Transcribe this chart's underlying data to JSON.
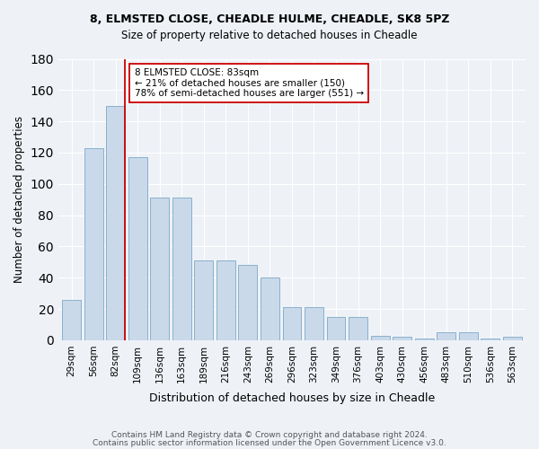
{
  "title1": "8, ELMSTED CLOSE, CHEADLE HULME, CHEADLE, SK8 5PZ",
  "title2": "Size of property relative to detached houses in Cheadle",
  "xlabel": "Distribution of detached houses by size in Cheadle",
  "ylabel": "Number of detached properties",
  "bar_values": [
    26,
    123,
    150,
    117,
    91,
    91,
    51,
    51,
    48,
    40,
    21,
    21,
    15,
    15,
    3,
    2,
    1,
    5,
    5,
    1,
    2
  ],
  "categories": [
    "29sqm",
    "56sqm",
    "82sqm",
    "109sqm",
    "136sqm",
    "163sqm",
    "189sqm",
    "216sqm",
    "243sqm",
    "269sqm",
    "296sqm",
    "323sqm",
    "349sqm",
    "376sqm",
    "403sqm",
    "430sqm",
    "456sqm",
    "483sqm",
    "510sqm",
    "536sqm",
    "563sqm"
  ],
  "bar_color": "#c9d9ea",
  "bar_edge_color": "#8ab0cc",
  "property_bar_index": 2,
  "annotation_text": "8 ELMSTED CLOSE: 83sqm\n← 21% of detached houses are smaller (150)\n78% of semi-detached houses are larger (551) →",
  "annotation_box_color": "#ffffff",
  "annotation_box_edge": "#cc0000",
  "vline_color": "#cc0000",
  "ylim": [
    0,
    180
  ],
  "yticks": [
    0,
    20,
    40,
    60,
    80,
    100,
    120,
    140,
    160,
    180
  ],
  "footer1": "Contains HM Land Registry data © Crown copyright and database right 2024.",
  "footer2": "Contains public sector information licensed under the Open Government Licence v3.0.",
  "bg_color": "#eef2f7",
  "plot_bg_color": "#eef2f7"
}
